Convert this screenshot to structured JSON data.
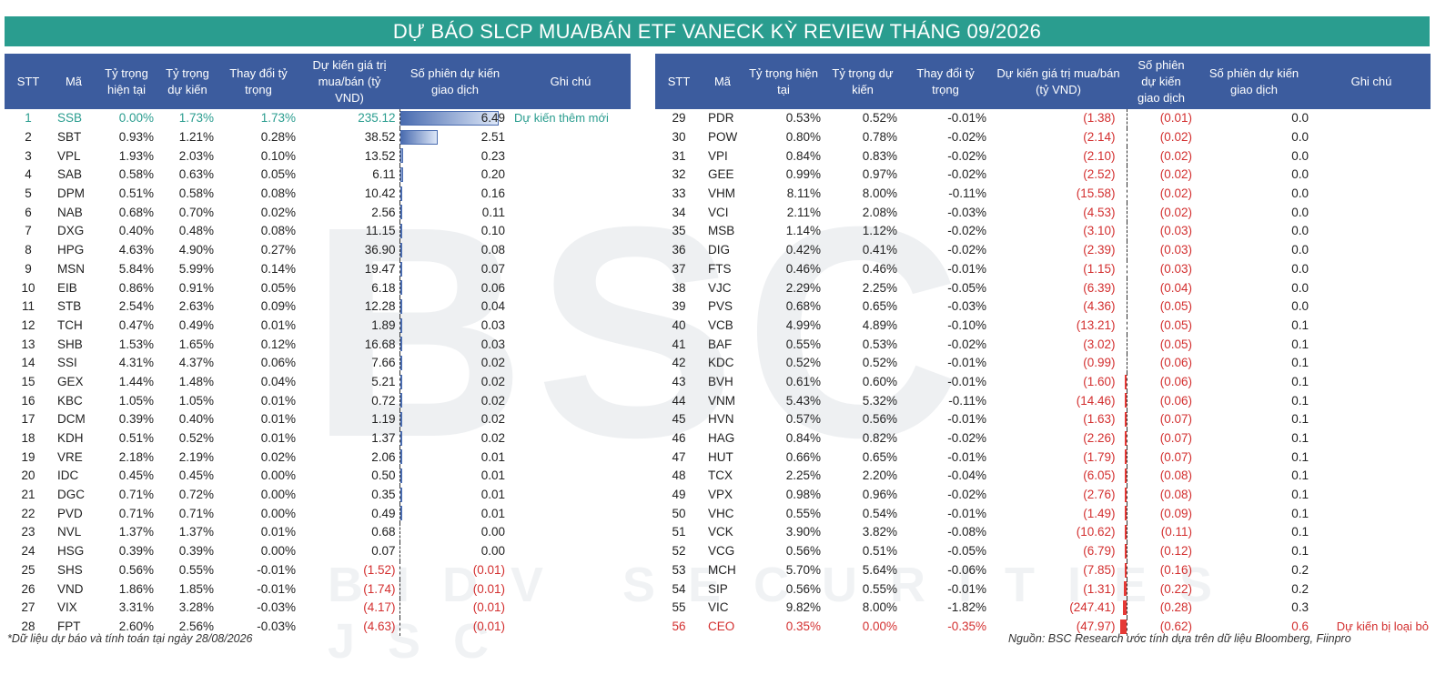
{
  "title": "DỰ BÁO SLCP MUA/BÁN ETF VANECK KỲ REVIEW THÁNG 09/2026",
  "watermark": "BSC",
  "watermark_sub": "BIDV SECURITIES JSC",
  "left_headers": [
    "STT",
    "Mã",
    "Tỷ trọng hiện tại",
    "Tỷ trọng dự kiến",
    "Thay đổi tỷ trọng",
    "Dự kiến giá trị mua/bán (tỷ VND)",
    "Số phiên dự kiến giao dịch",
    "Ghi chú"
  ],
  "right_headers": [
    "STT",
    "Mã",
    "Tỷ trọng hiện tại",
    "Tỷ trọng dự kiến",
    "Thay đổi tỷ trọng",
    "Dự kiến giá trị mua/bán (tỷ VND)",
    "Số phiên dự kiến giao dịch",
    "Số phiên dự kiến giao dịch",
    "Ghi chú"
  ],
  "left_rows": [
    {
      "stt": "1",
      "ma": "SSB",
      "cur": "0.00%",
      "exp": "1.73%",
      "chg": "1.73%",
      "val": "235.12",
      "sessions": "6.49",
      "bar": 6.49,
      "note": "Dự kiến thêm mới"
    },
    {
      "stt": "2",
      "ma": "SBT",
      "cur": "0.93%",
      "exp": "1.21%",
      "chg": "0.28%",
      "val": "38.52",
      "sessions": "2.51",
      "bar": 2.51,
      "note": ""
    },
    {
      "stt": "3",
      "ma": "VPL",
      "cur": "1.93%",
      "exp": "2.03%",
      "chg": "0.10%",
      "val": "13.52",
      "sessions": "0.23",
      "bar": 0.23,
      "note": ""
    },
    {
      "stt": "4",
      "ma": "SAB",
      "cur": "0.58%",
      "exp": "0.63%",
      "chg": "0.05%",
      "val": "6.11",
      "sessions": "0.20",
      "bar": 0.2,
      "note": ""
    },
    {
      "stt": "5",
      "ma": "DPM",
      "cur": "0.51%",
      "exp": "0.58%",
      "chg": "0.08%",
      "val": "10.42",
      "sessions": "0.16",
      "bar": 0.16,
      "note": ""
    },
    {
      "stt": "6",
      "ma": "NAB",
      "cur": "0.68%",
      "exp": "0.70%",
      "chg": "0.02%",
      "val": "2.56",
      "sessions": "0.11",
      "bar": 0.11,
      "note": ""
    },
    {
      "stt": "7",
      "ma": "DXG",
      "cur": "0.40%",
      "exp": "0.48%",
      "chg": "0.08%",
      "val": "11.15",
      "sessions": "0.10",
      "bar": 0.1,
      "note": ""
    },
    {
      "stt": "8",
      "ma": "HPG",
      "cur": "4.63%",
      "exp": "4.90%",
      "chg": "0.27%",
      "val": "36.90",
      "sessions": "0.08",
      "bar": 0.08,
      "note": ""
    },
    {
      "stt": "9",
      "ma": "MSN",
      "cur": "5.84%",
      "exp": "5.99%",
      "chg": "0.14%",
      "val": "19.47",
      "sessions": "0.07",
      "bar": 0.07,
      "note": ""
    },
    {
      "stt": "10",
      "ma": "EIB",
      "cur": "0.86%",
      "exp": "0.91%",
      "chg": "0.05%",
      "val": "6.18",
      "sessions": "0.06",
      "bar": 0.06,
      "note": ""
    },
    {
      "stt": "11",
      "ma": "STB",
      "cur": "2.54%",
      "exp": "2.63%",
      "chg": "0.09%",
      "val": "12.28",
      "sessions": "0.04",
      "bar": 0.04,
      "note": ""
    },
    {
      "stt": "12",
      "ma": "TCH",
      "cur": "0.47%",
      "exp": "0.49%",
      "chg": "0.01%",
      "val": "1.89",
      "sessions": "0.03",
      "bar": 0.03,
      "note": ""
    },
    {
      "stt": "13",
      "ma": "SHB",
      "cur": "1.53%",
      "exp": "1.65%",
      "chg": "0.12%",
      "val": "16.68",
      "sessions": "0.03",
      "bar": 0.03,
      "note": ""
    },
    {
      "stt": "14",
      "ma": "SSI",
      "cur": "4.31%",
      "exp": "4.37%",
      "chg": "0.06%",
      "val": "7.66",
      "sessions": "0.02",
      "bar": 0.02,
      "note": ""
    },
    {
      "stt": "15",
      "ma": "GEX",
      "cur": "1.44%",
      "exp": "1.48%",
      "chg": "0.04%",
      "val": "5.21",
      "sessions": "0.02",
      "bar": 0.02,
      "note": ""
    },
    {
      "stt": "16",
      "ma": "KBC",
      "cur": "1.05%",
      "exp": "1.05%",
      "chg": "0.01%",
      "val": "0.72",
      "sessions": "0.02",
      "bar": 0.02,
      "note": ""
    },
    {
      "stt": "17",
      "ma": "DCM",
      "cur": "0.39%",
      "exp": "0.40%",
      "chg": "0.01%",
      "val": "1.19",
      "sessions": "0.02",
      "bar": 0.02,
      "note": ""
    },
    {
      "stt": "18",
      "ma": "KDH",
      "cur": "0.51%",
      "exp": "0.52%",
      "chg": "0.01%",
      "val": "1.37",
      "sessions": "0.02",
      "bar": 0.02,
      "note": ""
    },
    {
      "stt": "19",
      "ma": "VRE",
      "cur": "2.18%",
      "exp": "2.19%",
      "chg": "0.02%",
      "val": "2.06",
      "sessions": "0.01",
      "bar": 0.01,
      "note": ""
    },
    {
      "stt": "20",
      "ma": "IDC",
      "cur": "0.45%",
      "exp": "0.45%",
      "chg": "0.00%",
      "val": "0.50",
      "sessions": "0.01",
      "bar": 0.01,
      "note": ""
    },
    {
      "stt": "21",
      "ma": "DGC",
      "cur": "0.71%",
      "exp": "0.72%",
      "chg": "0.00%",
      "val": "0.35",
      "sessions": "0.01",
      "bar": 0.01,
      "note": ""
    },
    {
      "stt": "22",
      "ma": "PVD",
      "cur": "0.71%",
      "exp": "0.71%",
      "chg": "0.00%",
      "val": "0.49",
      "sessions": "0.01",
      "bar": 0.01,
      "note": ""
    },
    {
      "stt": "23",
      "ma": "NVL",
      "cur": "1.37%",
      "exp": "1.37%",
      "chg": "0.01%",
      "val": "0.68",
      "sessions": "0.00",
      "bar": 0,
      "note": ""
    },
    {
      "stt": "24",
      "ma": "HSG",
      "cur": "0.39%",
      "exp": "0.39%",
      "chg": "0.00%",
      "val": "0.07",
      "sessions": "0.00",
      "bar": 0,
      "note": ""
    },
    {
      "stt": "25",
      "ma": "SHS",
      "cur": "0.56%",
      "exp": "0.55%",
      "chg": "-0.01%",
      "val": "(1.52)",
      "sessions": "(0.01)",
      "bar": 0,
      "note": ""
    },
    {
      "stt": "26",
      "ma": "VND",
      "cur": "1.86%",
      "exp": "1.85%",
      "chg": "-0.01%",
      "val": "(1.74)",
      "sessions": "(0.01)",
      "bar": 0,
      "note": ""
    },
    {
      "stt": "27",
      "ma": "VIX",
      "cur": "3.31%",
      "exp": "3.28%",
      "chg": "-0.03%",
      "val": "(4.17)",
      "sessions": "(0.01)",
      "bar": 0,
      "note": ""
    },
    {
      "stt": "28",
      "ma": "FPT",
      "cur": "2.60%",
      "exp": "2.56%",
      "chg": "-0.03%",
      "val": "(4.63)",
      "sessions": "(0.01)",
      "bar": 0,
      "note": ""
    }
  ],
  "right_rows": [
    {
      "stt": "29",
      "ma": "PDR",
      "cur": "0.53%",
      "exp": "0.52%",
      "chg": "-0.01%",
      "val": "(1.38)",
      "sessions": "(0.01)",
      "sessions2": "0.0",
      "bar": 0,
      "note": ""
    },
    {
      "stt": "30",
      "ma": "POW",
      "cur": "0.80%",
      "exp": "0.78%",
      "chg": "-0.02%",
      "val": "(2.14)",
      "sessions": "(0.02)",
      "sessions2": "0.0",
      "bar": 0,
      "note": ""
    },
    {
      "stt": "31",
      "ma": "VPI",
      "cur": "0.84%",
      "exp": "0.83%",
      "chg": "-0.02%",
      "val": "(2.10)",
      "sessions": "(0.02)",
      "sessions2": "0.0",
      "bar": 0,
      "note": ""
    },
    {
      "stt": "32",
      "ma": "GEE",
      "cur": "0.99%",
      "exp": "0.97%",
      "chg": "-0.02%",
      "val": "(2.52)",
      "sessions": "(0.02)",
      "sessions2": "0.0",
      "bar": 0,
      "note": ""
    },
    {
      "stt": "33",
      "ma": "VHM",
      "cur": "8.11%",
      "exp": "8.00%",
      "chg": "-0.11%",
      "val": "(15.58)",
      "sessions": "(0.02)",
      "sessions2": "0.0",
      "bar": 0,
      "note": ""
    },
    {
      "stt": "34",
      "ma": "VCI",
      "cur": "2.11%",
      "exp": "2.08%",
      "chg": "-0.03%",
      "val": "(4.53)",
      "sessions": "(0.02)",
      "sessions2": "0.0",
      "bar": 0,
      "note": ""
    },
    {
      "stt": "35",
      "ma": "MSB",
      "cur": "1.14%",
      "exp": "1.12%",
      "chg": "-0.02%",
      "val": "(3.10)",
      "sessions": "(0.03)",
      "sessions2": "0.0",
      "bar": 0,
      "note": ""
    },
    {
      "stt": "36",
      "ma": "DIG",
      "cur": "0.42%",
      "exp": "0.41%",
      "chg": "-0.02%",
      "val": "(2.39)",
      "sessions": "(0.03)",
      "sessions2": "0.0",
      "bar": 0,
      "note": ""
    },
    {
      "stt": "37",
      "ma": "FTS",
      "cur": "0.46%",
      "exp": "0.46%",
      "chg": "-0.01%",
      "val": "(1.15)",
      "sessions": "(0.03)",
      "sessions2": "0.0",
      "bar": 0,
      "note": ""
    },
    {
      "stt": "38",
      "ma": "VJC",
      "cur": "2.29%",
      "exp": "2.25%",
      "chg": "-0.05%",
      "val": "(6.39)",
      "sessions": "(0.04)",
      "sessions2": "0.0",
      "bar": 0,
      "note": ""
    },
    {
      "stt": "39",
      "ma": "PVS",
      "cur": "0.68%",
      "exp": "0.65%",
      "chg": "-0.03%",
      "val": "(4.36)",
      "sessions": "(0.05)",
      "sessions2": "0.0",
      "bar": 0,
      "note": ""
    },
    {
      "stt": "40",
      "ma": "VCB",
      "cur": "4.99%",
      "exp": "4.89%",
      "chg": "-0.10%",
      "val": "(13.21)",
      "sessions": "(0.05)",
      "sessions2": "0.1",
      "bar": 0,
      "note": ""
    },
    {
      "stt": "41",
      "ma": "BAF",
      "cur": "0.55%",
      "exp": "0.53%",
      "chg": "-0.02%",
      "val": "(3.02)",
      "sessions": "(0.05)",
      "sessions2": "0.1",
      "bar": 0,
      "note": ""
    },
    {
      "stt": "42",
      "ma": "KDC",
      "cur": "0.52%",
      "exp": "0.52%",
      "chg": "-0.01%",
      "val": "(0.99)",
      "sessions": "(0.06)",
      "sessions2": "0.1",
      "bar": 0,
      "note": ""
    },
    {
      "stt": "43",
      "ma": "BVH",
      "cur": "0.61%",
      "exp": "0.60%",
      "chg": "-0.01%",
      "val": "(1.60)",
      "sessions": "(0.06)",
      "sessions2": "0.1",
      "bar": 0.06,
      "note": ""
    },
    {
      "stt": "44",
      "ma": "VNM",
      "cur": "5.43%",
      "exp": "5.32%",
      "chg": "-0.11%",
      "val": "(14.46)",
      "sessions": "(0.06)",
      "sessions2": "0.1",
      "bar": 0.06,
      "note": ""
    },
    {
      "stt": "45",
      "ma": "HVN",
      "cur": "0.57%",
      "exp": "0.56%",
      "chg": "-0.01%",
      "val": "(1.63)",
      "sessions": "(0.07)",
      "sessions2": "0.1",
      "bar": 0.07,
      "note": ""
    },
    {
      "stt": "46",
      "ma": "HAG",
      "cur": "0.84%",
      "exp": "0.82%",
      "chg": "-0.02%",
      "val": "(2.26)",
      "sessions": "(0.07)",
      "sessions2": "0.1",
      "bar": 0.07,
      "note": ""
    },
    {
      "stt": "47",
      "ma": "HUT",
      "cur": "0.66%",
      "exp": "0.65%",
      "chg": "-0.01%",
      "val": "(1.79)",
      "sessions": "(0.07)",
      "sessions2": "0.1",
      "bar": 0.07,
      "note": ""
    },
    {
      "stt": "48",
      "ma": "TCX",
      "cur": "2.25%",
      "exp": "2.20%",
      "chg": "-0.04%",
      "val": "(6.05)",
      "sessions": "(0.08)",
      "sessions2": "0.1",
      "bar": 0.08,
      "note": ""
    },
    {
      "stt": "49",
      "ma": "VPX",
      "cur": "0.98%",
      "exp": "0.96%",
      "chg": "-0.02%",
      "val": "(2.76)",
      "sessions": "(0.08)",
      "sessions2": "0.1",
      "bar": 0.08,
      "note": ""
    },
    {
      "stt": "50",
      "ma": "VHC",
      "cur": "0.55%",
      "exp": "0.54%",
      "chg": "-0.01%",
      "val": "(1.49)",
      "sessions": "(0.09)",
      "sessions2": "0.1",
      "bar": 0.09,
      "note": ""
    },
    {
      "stt": "51",
      "ma": "VCK",
      "cur": "3.90%",
      "exp": "3.82%",
      "chg": "-0.08%",
      "val": "(10.62)",
      "sessions": "(0.11)",
      "sessions2": "0.1",
      "bar": 0.11,
      "note": ""
    },
    {
      "stt": "52",
      "ma": "VCG",
      "cur": "0.56%",
      "exp": "0.51%",
      "chg": "-0.05%",
      "val": "(6.79)",
      "sessions": "(0.12)",
      "sessions2": "0.1",
      "bar": 0.12,
      "note": ""
    },
    {
      "stt": "53",
      "ma": "MCH",
      "cur": "5.70%",
      "exp": "5.64%",
      "chg": "-0.06%",
      "val": "(7.85)",
      "sessions": "(0.16)",
      "sessions2": "0.2",
      "bar": 0.16,
      "note": ""
    },
    {
      "stt": "54",
      "ma": "SIP",
      "cur": "0.56%",
      "exp": "0.55%",
      "chg": "-0.01%",
      "val": "(1.31)",
      "sessions": "(0.22)",
      "sessions2": "0.2",
      "bar": 0.22,
      "note": ""
    },
    {
      "stt": "55",
      "ma": "VIC",
      "cur": "9.82%",
      "exp": "8.00%",
      "chg": "-1.82%",
      "val": "(247.41)",
      "sessions": "(0.28)",
      "sessions2": "0.3",
      "bar": 0.28,
      "note": ""
    },
    {
      "stt": "56",
      "ma": "CEO",
      "cur": "0.35%",
      "exp": "0.00%",
      "chg": "-0.35%",
      "val": "(47.97)",
      "sessions": "(0.62)",
      "sessions2": "0.6",
      "bar": 0.62,
      "note": "Dự kiến bị loại bỏ"
    }
  ],
  "footnote_left": "*Dữ liệu dự báo và tính toán tại ngày 28/08/2026",
  "footnote_right": "Nguồn: BSC Research ước tính dựa trên dữ liệu Bloomberg, Fiinpro",
  "colors": {
    "title_bg": "#2a9d8f",
    "header_bg": "#3c5c9e",
    "negative": "#d32f2f",
    "highlight": "#2a9d8f"
  }
}
